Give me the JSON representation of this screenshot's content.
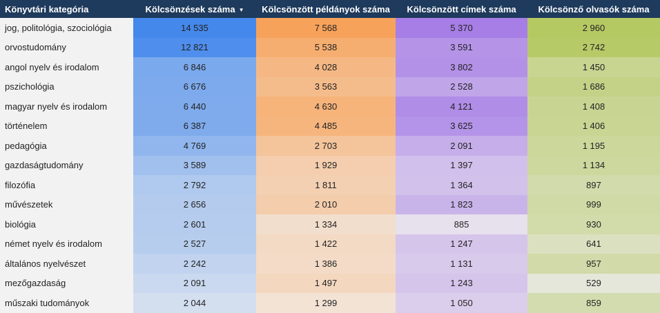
{
  "chart_data": {
    "type": "heatmap",
    "columns": [
      {
        "label": "Könyvtári kategória"
      },
      {
        "label": "Kölcsönzések száma",
        "sort_icon": "sort-desc-icon",
        "color_max": "#4588ec",
        "color_min": "#d3deef"
      },
      {
        "label": "Kölcsönzött példányok száma",
        "color_max": "#f7a25a",
        "color_min": "#f2e3d5"
      },
      {
        "label": "Kölcsönzött címek száma",
        "color_max": "#a67ee6",
        "color_min": "#e7e1ed"
      },
      {
        "label": "Kölcsönző olvasók száma",
        "color_max": "#b5c963",
        "color_min": "#e5e7da"
      }
    ],
    "rows": [
      {
        "category": "jog, politológia, szociológia",
        "values": [
          14535,
          7568,
          5370,
          2960
        ],
        "display": [
          "14 535",
          "7 568",
          "5 370",
          "2 960"
        ]
      },
      {
        "category": "orvostudomány",
        "values": [
          12821,
          5538,
          3591,
          2742
        ],
        "display": [
          "12 821",
          "5 538",
          "3 591",
          "2 742"
        ]
      },
      {
        "category": "angol nyelv és irodalom",
        "values": [
          6846,
          4028,
          3802,
          1450
        ],
        "display": [
          "6 846",
          "4 028",
          "3 802",
          "1 450"
        ]
      },
      {
        "category": "pszichológia",
        "values": [
          6676,
          3563,
          2528,
          1686
        ],
        "display": [
          "6 676",
          "3 563",
          "2 528",
          "1 686"
        ]
      },
      {
        "category": "magyar nyelv és irodalom",
        "values": [
          6440,
          4630,
          4121,
          1408
        ],
        "display": [
          "6 440",
          "4 630",
          "4 121",
          "1 408"
        ]
      },
      {
        "category": "történelem",
        "values": [
          6387,
          4485,
          3625,
          1406
        ],
        "display": [
          "6 387",
          "4 485",
          "3 625",
          "1 406"
        ]
      },
      {
        "category": "pedagógia",
        "values": [
          4769,
          2703,
          2091,
          1195
        ],
        "display": [
          "4 769",
          "2 703",
          "2 091",
          "1 195"
        ]
      },
      {
        "category": "gazdaságtudomány",
        "values": [
          3589,
          1929,
          1397,
          1134
        ],
        "display": [
          "3 589",
          "1 929",
          "1 397",
          "1 134"
        ]
      },
      {
        "category": "filozófia",
        "values": [
          2792,
          1811,
          1364,
          897
        ],
        "display": [
          "2 792",
          "1 811",
          "1 364",
          "897"
        ]
      },
      {
        "category": "művészetek",
        "values": [
          2656,
          2010,
          1823,
          999
        ],
        "display": [
          "2 656",
          "2 010",
          "1 823",
          "999"
        ]
      },
      {
        "category": "biológia",
        "values": [
          2601,
          1334,
          885,
          930
        ],
        "display": [
          "2 601",
          "1 334",
          "885",
          "930"
        ]
      },
      {
        "category": "német nyelv és irodalom",
        "values": [
          2527,
          1422,
          1247,
          641
        ],
        "display": [
          "2 527",
          "1 422",
          "1 247",
          "641"
        ]
      },
      {
        "category": "általános nyelvészet",
        "values": [
          2242,
          1386,
          1131,
          957
        ],
        "display": [
          "2 242",
          "1 386",
          "1 131",
          "957"
        ]
      },
      {
        "category": "mezőgazdaság",
        "values": [
          2091,
          1497,
          1243,
          529
        ],
        "display": [
          "2 091",
          "1 497",
          "1 243",
          "529"
        ]
      },
      {
        "category": "műszaki tudományok",
        "values": [
          2044,
          1299,
          1050,
          859
        ],
        "display": [
          "2 044",
          "1 299",
          "1 050",
          "859"
        ]
      }
    ]
  }
}
